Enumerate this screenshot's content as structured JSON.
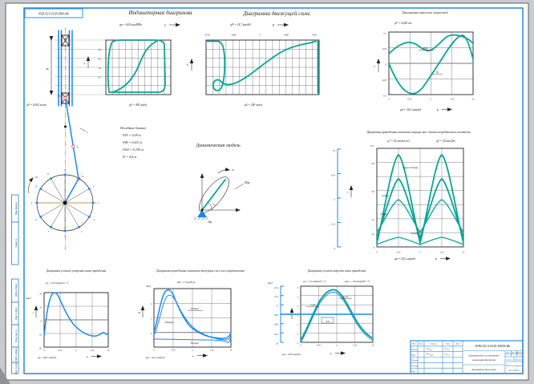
{
  "colors": {
    "accent_blue": "#2f8fe0",
    "curve_blue": "#1f87e8",
    "curve_teal": "#0aa396",
    "centerline_orange": "#e08a00"
  },
  "stamp": {
    "designation": "8ЧН П2 0.П/28 НП06.В6"
  },
  "titles": {
    "indicator": "Индикаторная диаграмма",
    "driving": "Диаграмма движущей силы",
    "velocity": "Диаграммы аналогов скоростей",
    "inertia": "Диаграммы приведённых моментов инерции масс звеньев передаточного механизма",
    "dynmodel": "Динамическая модель",
    "eps": "Диаграмма углового ускорения звена приведения",
    "moments": "Диаграмма приведённых моментов движущих сил и сил сопротивления",
    "omega": "Диаграмма угловой скорости звена приведения"
  },
  "initial": {
    "heading": "Исходные данные:",
    "lines": [
      "lОА = 0,09 м",
      "lАВ = 0,432 м",
      "lАS2 = 0,105 м",
      "D = 0,8 м"
    ]
  },
  "common": {
    "xticks": [
      "0",
      "0,5π",
      "π",
      "1,5π",
      "2π"
    ],
    "phi": "φ"
  },
  "mech": {
    "scale": "μS = 0,002 м/мм",
    "omega1": "ω₁",
    "label_B": "В",
    "label_rod": "2",
    "label_A": "А",
    "label_S2": "S₂",
    "label_H": "Н",
    "positions": [
      "0",
      "1",
      "2",
      "3",
      "4",
      "5",
      "6",
      "7",
      "8",
      "9",
      "10",
      "11"
    ]
  },
  "indicator": {
    "scale_top": "μр = 4,05 мм/МПа",
    "axis_top": "S",
    "scale_bottom": "μS = 400 мм/м",
    "y_axis": "р",
    "rows": [
      "0,8",
      "0,6",
      "0,4",
      "0,2"
    ]
  },
  "driving": {
    "scale_top": "μР = 14,7 мм/кН",
    "axis_top": "Р",
    "scale_bottom": "μS = 200 мм/м",
    "y_axis": "Р",
    "x_values": [
      "-4728",
      "-2989",
      "0",
      "2989",
      "4728"
    ]
  },
  "velocity": {
    "scale": "μV = 0,020 м/с",
    "scale_phi": "μφ = 34,2 мм/рад",
    "y_axis": "V",
    "yticks": [
      "0,1",
      "0,05",
      "0",
      "-0,05",
      "-0,1"
    ],
    "curve_s": "SВ(φ)",
    "curve_v": "VВ"
  },
  "inertia": {
    "scale_j": "μJ = 92 мм/(кг·м²)",
    "scale_t": "μТ = 28 мм/Дж",
    "scale_phi": "μφ = 20,2 мм/рад",
    "unit": "10⁻²",
    "y_axis": "J",
    "bracket": [
      "2π",
      "3/2π",
      "π",
      "1/2π",
      "0"
    ],
    "yticks": [
      "0,8",
      "0,6",
      "0,4",
      "0,2",
      "0"
    ],
    "labels": {
      "jpr": "Jпр(φ)=ΣJiпр(φ)",
      "j2": "J2пр(φ)",
      "j3": "J3пр(φ)",
      "j45": "J45пр(φ)"
    }
  },
  "dyn": {
    "omega1": "ω₁",
    "mpr": "Мпр",
    "jpr": "Jпр",
    "phi1": "φ₁"
  },
  "eps": {
    "scale": "με = 2,8 мм/(рад·с⁻²)",
    "unit": "рад/с²",
    "y_axis": "ε",
    "scale_phi": "μφ = 68,7 мм/рад",
    "yticks": [
      "20",
      "10",
      "0",
      "-10",
      "-20"
    ]
  },
  "moments": {
    "scale": "μМ = 3 мм/(Н·м)",
    "unit": "кН·м",
    "y_axis": "М",
    "scale_phi": "μφ = 40,2 мм/рад",
    "yticks": [
      "4",
      "2",
      "0"
    ],
    "labels": {
      "md": "Мдпр(φ)",
      "sum": "ΣМпр(φ)",
      "mc": "Мспр(φ)"
    }
  },
  "omega": {
    "scale_w": "μω = 34 мм/(рад·с⁻¹)",
    "scale_dw": "μΔω = 2,8 мм/(рад·с⁻¹)",
    "unit": "рад/с",
    "y_axis": "ω",
    "scale_phi": "μφ = 978 мм/рад",
    "left_ticks": [
      "27,4",
      "27,2",
      "27",
      "26,8",
      "26,6",
      "26,2",
      "26"
    ],
    "inner_ticks": [
      "5",
      "4",
      "3",
      "2",
      "1",
      "0",
      "-1"
    ],
    "labels": {
      "w": "ω₁(φ)",
      "dw": "Δω(φ)",
      "wsr": "ωср"
    }
  },
  "titleblock": {
    "designation": "8ЧН П2 0.П/28 НП06.В6",
    "doc_line1": "Динамическое исследование",
    "doc_line2": "механизма двигателя",
    "doc_line3": "Диаграммы движения",
    "header": [
      "Изм.",
      "Лист",
      "№ докум.",
      "Подп.",
      "Дата"
    ],
    "rows": [
      "Разраб.",
      "Пров.",
      "Т.контр.",
      "Н.контр.",
      "Утв."
    ],
    "lit": "Лит.",
    "massa": "Масса",
    "masshtab": "Масштаб",
    "masshtab_val": "1:1",
    "list": "Лист 1",
    "listov": "Листов 6",
    "org1": "МГТУ им. Баумана",
    "org2": "группа МВ-21"
  },
  "gost_cols": [
    "Перв. примен.",
    "Справ. №",
    "Подп. и дата",
    "Инв. № дубл.",
    "Взам. инв. №",
    "Подп. и дата",
    "Инв. № подл."
  ],
  "chart_data": [
    {
      "id": "indicator_diagram",
      "type": "area",
      "title": "Индикаторная диаграмма",
      "x_norm_stroke": [
        0,
        0.1,
        0.2,
        0.3,
        0.4,
        0.5,
        0.6,
        0.7,
        0.8,
        0.9,
        1
      ],
      "p_expansion_MPa": [
        0.15,
        0.72,
        0.84,
        0.86,
        0.86,
        0.85,
        0.84,
        0.83,
        0.82,
        0.8,
        0.55
      ],
      "p_compression_MPa": [
        0.15,
        0.1,
        0.09,
        0.12,
        0.2,
        0.33,
        0.47,
        0.6,
        0.72,
        0.8,
        0.55
      ],
      "scales": {
        "pressure": "μр = 4,05 мм/МПа",
        "stroke": "μS = 400 мм/м"
      }
    },
    {
      "id": "driving_force",
      "type": "line",
      "title": "Диаграмма движущей силы",
      "x_norm_stroke": [
        0,
        0.05,
        0.1,
        0.15,
        0.2,
        0.3,
        0.4,
        0.5,
        0.6,
        0.7,
        0.8,
        0.9,
        1
      ],
      "P_N": [
        4728,
        4600,
        1500,
        -2989,
        -4200,
        -3500,
        -2400,
        -1200,
        -200,
        800,
        1900,
        2989,
        4728
      ],
      "x_axis_values": [
        -4728,
        -2989,
        0,
        2989,
        4728
      ]
    },
    {
      "id": "velocity_analogs",
      "type": "line",
      "x_phi_pi": [
        0,
        0.25,
        0.5,
        0.75,
        1,
        1.25,
        1.5,
        1.75,
        2
      ],
      "series": [
        {
          "name": "SВ(φ)",
          "values": [
            0.055,
            0.085,
            0.09,
            0.075,
            0.06,
            0.08,
            0.1,
            0.085,
            0.07
          ]
        },
        {
          "name": "VВ(φ)",
          "values": [
            0,
            -0.065,
            -0.095,
            -0.055,
            0.005,
            0.06,
            0.098,
            0.05,
            -0.015
          ]
        }
      ],
      "ylim": [
        -0.1,
        0.1
      ],
      "grid": true
    },
    {
      "id": "reduced_inertia",
      "type": "line",
      "x_phi_pi": [
        0,
        0.25,
        0.5,
        0.75,
        1,
        1.25,
        1.5,
        1.75,
        2
      ],
      "series": [
        {
          "name": "Jпр(φ)=ΣJiпр(φ)",
          "values": [
            0.05,
            0.45,
            0.82,
            0.45,
            0.05,
            0.45,
            0.82,
            0.45,
            0.05
          ]
        },
        {
          "name": "J2пр(φ)",
          "values": [
            0.08,
            0.35,
            0.6,
            0.35,
            0.08,
            0.35,
            0.6,
            0.35,
            0.08
          ]
        },
        {
          "name": "J3пр(φ)",
          "values": [
            0.12,
            0.25,
            0.42,
            0.25,
            0.12,
            0.25,
            0.42,
            0.25,
            0.12
          ]
        },
        {
          "name": "J45пр(φ)",
          "values": [
            0.02,
            0.04,
            0.08,
            0.04,
            0.02,
            0.04,
            0.08,
            0.04,
            0.02
          ]
        }
      ],
      "ylim": [
        0,
        0.9
      ],
      "units": "кг·м², ×10⁻²"
    },
    {
      "id": "angular_acceleration",
      "type": "line",
      "x_phi_pi": [
        0,
        0.25,
        0.5,
        0.75,
        1,
        1.25,
        1.5,
        1.75,
        2
      ],
      "values": [
        -12,
        18,
        4,
        -4,
        -9,
        -11,
        -12,
        -10,
        -10
      ],
      "ylim": [
        -20,
        20
      ],
      "units": "рад/с²"
    },
    {
      "id": "reduced_moments",
      "type": "line",
      "x_phi_pi": [
        0,
        0.25,
        0.5,
        0.75,
        1,
        1.25,
        1.5,
        1.75,
        2
      ],
      "series": [
        {
          "name": "Мдпр(φ)",
          "values": [
            0.3,
            4.6,
            2.2,
            0.8,
            0.1,
            -0.3,
            -0.5,
            -0.7,
            0
          ]
        },
        {
          "name": "Мспр(φ)",
          "values": [
            -0.8,
            -0.8,
            -0.8,
            -0.8,
            -0.8,
            -0.8,
            -0.8,
            -0.8,
            -0.8
          ]
        }
      ],
      "units": "кН·м"
    },
    {
      "id": "angular_velocity",
      "type": "line",
      "x_phi_pi": [
        0,
        0.25,
        0.5,
        0.75,
        1,
        1.25,
        1.5,
        1.75,
        2
      ],
      "values": [
        26.1,
        26.6,
        27.1,
        27.35,
        27.3,
        26.95,
        26.5,
        26.15,
        26.1
      ],
      "omega_mean": 26.7,
      "ylim": [
        26,
        27.4
      ],
      "units": "рад/с"
    }
  ]
}
